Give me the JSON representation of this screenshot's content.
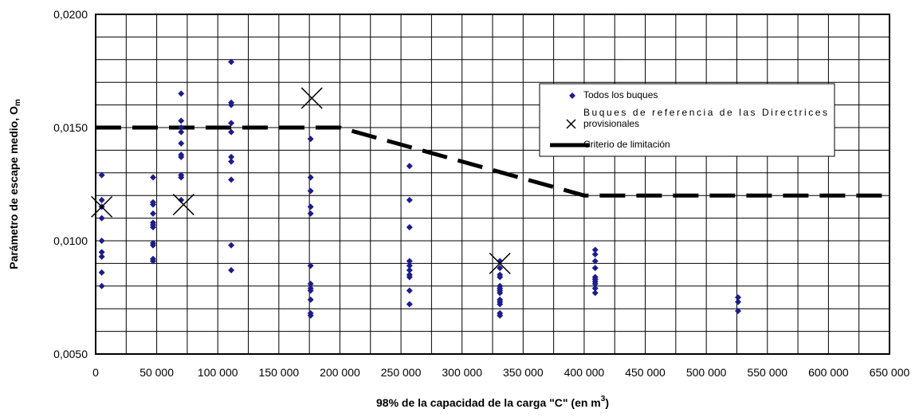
{
  "chart_data": {
    "type": "scatter",
    "xlabel_main": "98% de la capacidad de la carga \"C\" (en m",
    "xlabel_sup": "3",
    "xlabel_end": ")",
    "ylabel_main": "Parámetro de escape medio, O",
    "ylabel_sub": "m",
    "xlim": [
      0,
      650000
    ],
    "ylim": [
      0.005,
      0.02
    ],
    "grid": true,
    "legend_position": "top-right",
    "x_ticks": [
      {
        "value": 0,
        "label": "0"
      },
      {
        "value": 50000,
        "label": "50 000"
      },
      {
        "value": 100000,
        "label": "100 000"
      },
      {
        "value": 150000,
        "label": "150 000"
      },
      {
        "value": 200000,
        "label": "200 000"
      },
      {
        "value": 250000,
        "label": "250 000"
      },
      {
        "value": 300000,
        "label": "300 000"
      },
      {
        "value": 350000,
        "label": "350 000"
      },
      {
        "value": 400000,
        "label": "400 000"
      },
      {
        "value": 450000,
        "label": "450 000"
      },
      {
        "value": 500000,
        "label": "500 000"
      },
      {
        "value": 550000,
        "label": "550 000"
      },
      {
        "value": 600000,
        "label": "600 000"
      },
      {
        "value": 650000,
        "label": "650 000"
      }
    ],
    "y_ticks": [
      {
        "value": 0.005,
        "label": "0,0050"
      },
      {
        "value": 0.01,
        "label": "0,0100"
      },
      {
        "value": 0.015,
        "label": "0,0150"
      },
      {
        "value": 0.02,
        "label": "0,0200"
      }
    ],
    "series": [
      {
        "name": "Todos los buques",
        "marker": "diamond",
        "color": "#1c1c8c",
        "points": [
          [
            5000,
            0.0129
          ],
          [
            5000,
            0.0118
          ],
          [
            5000,
            0.0115
          ],
          [
            5000,
            0.011
          ],
          [
            5000,
            0.01
          ],
          [
            5000,
            0.0095
          ],
          [
            5000,
            0.0093
          ],
          [
            5000,
            0.0086
          ],
          [
            5000,
            0.008
          ],
          [
            47000,
            0.0128
          ],
          [
            47000,
            0.0117
          ],
          [
            47000,
            0.0116
          ],
          [
            47000,
            0.0112
          ],
          [
            47000,
            0.0108
          ],
          [
            47000,
            0.0107
          ],
          [
            47000,
            0.0106
          ],
          [
            47000,
            0.0099
          ],
          [
            47000,
            0.0098
          ],
          [
            47000,
            0.0092
          ],
          [
            47000,
            0.0091
          ],
          [
            70000,
            0.0165
          ],
          [
            70000,
            0.0153
          ],
          [
            70000,
            0.015
          ],
          [
            70000,
            0.0148
          ],
          [
            70000,
            0.0143
          ],
          [
            70000,
            0.0138
          ],
          [
            70000,
            0.0137
          ],
          [
            70000,
            0.0129
          ],
          [
            70000,
            0.0128
          ],
          [
            70000,
            0.0118
          ],
          [
            111000,
            0.0179
          ],
          [
            111000,
            0.0161
          ],
          [
            111000,
            0.016
          ],
          [
            111000,
            0.0152
          ],
          [
            111000,
            0.0148
          ],
          [
            111000,
            0.0137
          ],
          [
            111000,
            0.0135
          ],
          [
            111000,
            0.0127
          ],
          [
            111000,
            0.0098
          ],
          [
            111000,
            0.0087
          ],
          [
            176000,
            0.0145
          ],
          [
            176000,
            0.0128
          ],
          [
            176000,
            0.0122
          ],
          [
            176000,
            0.0115
          ],
          [
            176000,
            0.0112
          ],
          [
            176000,
            0.0089
          ],
          [
            176000,
            0.0081
          ],
          [
            176000,
            0.0079
          ],
          [
            176000,
            0.0078
          ],
          [
            176000,
            0.0074
          ],
          [
            176000,
            0.0068
          ],
          [
            176000,
            0.0067
          ],
          [
            257000,
            0.0133
          ],
          [
            257000,
            0.0118
          ],
          [
            257000,
            0.0106
          ],
          [
            257000,
            0.0091
          ],
          [
            257000,
            0.0089
          ],
          [
            257000,
            0.0087
          ],
          [
            257000,
            0.0085
          ],
          [
            257000,
            0.0084
          ],
          [
            257000,
            0.0078
          ],
          [
            257000,
            0.0072
          ],
          [
            331000,
            0.0091
          ],
          [
            331000,
            0.0088
          ],
          [
            331000,
            0.0085
          ],
          [
            331000,
            0.0084
          ],
          [
            331000,
            0.008
          ],
          [
            331000,
            0.0079
          ],
          [
            331000,
            0.0078
          ],
          [
            331000,
            0.0077
          ],
          [
            331000,
            0.0074
          ],
          [
            331000,
            0.0073
          ],
          [
            331000,
            0.0072
          ],
          [
            331000,
            0.0068
          ],
          [
            331000,
            0.0067
          ],
          [
            409000,
            0.0096
          ],
          [
            409000,
            0.0094
          ],
          [
            409000,
            0.0091
          ],
          [
            409000,
            0.0088
          ],
          [
            409000,
            0.0084
          ],
          [
            409000,
            0.0083
          ],
          [
            409000,
            0.0082
          ],
          [
            409000,
            0.0081
          ],
          [
            409000,
            0.0079
          ],
          [
            409000,
            0.0077
          ],
          [
            526000,
            0.0075
          ],
          [
            526000,
            0.0073
          ],
          [
            526000,
            0.0069
          ]
        ]
      },
      {
        "name": "Buques de referencia de las Directrices provisionales",
        "name_line1": "Buques  de  referencia  de  las  Directrices",
        "name_line2": "provisionales",
        "marker": "x",
        "color": "#000000",
        "points": [
          [
            5000,
            0.0115
          ],
          [
            72000,
            0.0116
          ],
          [
            177000,
            0.0163
          ],
          [
            331000,
            0.009
          ]
        ]
      },
      {
        "name": "Criterio de limitación",
        "marker": "dashed-line",
        "color": "#000000",
        "points": [
          [
            0,
            0.015
          ],
          [
            200000,
            0.015
          ],
          [
            400000,
            0.012
          ],
          [
            650000,
            0.012
          ]
        ]
      }
    ]
  }
}
